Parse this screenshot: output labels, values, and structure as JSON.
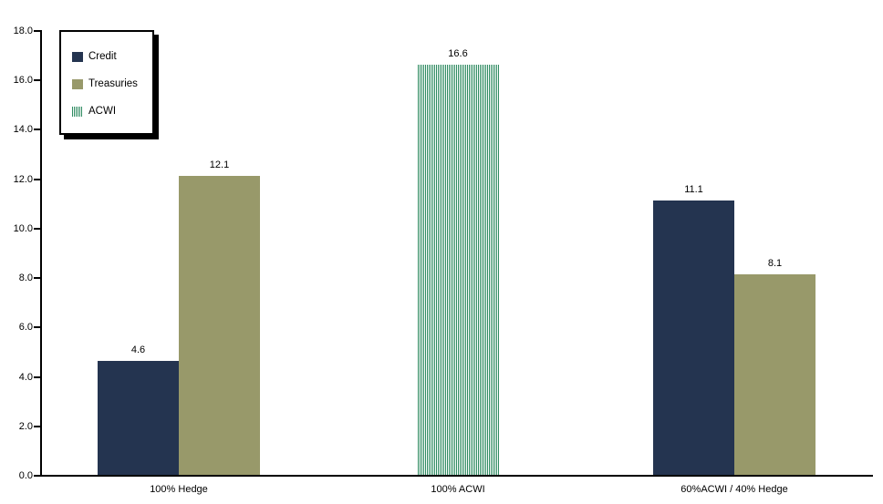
{
  "chart_data": {
    "type": "bar",
    "title": "",
    "xlabel": "",
    "ylabel": "",
    "categories": [
      "100% Hedge",
      "100% ACWI",
      "60%ACWI / 40% Hedge"
    ],
    "series": [
      {
        "name": "Credit",
        "values": [
          4.6,
          null,
          11.1
        ],
        "color": "#243450",
        "pattern": "solid"
      },
      {
        "name": "Treasuries",
        "values": [
          12.1,
          null,
          8.1
        ],
        "color": "#98996A",
        "pattern": "solid"
      },
      {
        "name": "ACWI",
        "values": [
          null,
          16.6,
          null
        ],
        "color": "#2E8B61",
        "pattern": "vertical-stripes"
      }
    ],
    "value_labels_shown": true,
    "ylim": [
      0,
      18
    ],
    "ytick_labels": [
      "0.0",
      "2.0",
      "4.0",
      "6.0",
      "8.0",
      "10.0",
      "12.0",
      "14.0",
      "16.0",
      "18.0"
    ],
    "grid": false,
    "legend_position": "top-left"
  },
  "colors": {
    "background": "#FFFFFF",
    "axis": "#000000",
    "text": "#000000",
    "credit": "#243450",
    "treasuries": "#98996A",
    "acwi_stripe": "#2E8B61"
  }
}
